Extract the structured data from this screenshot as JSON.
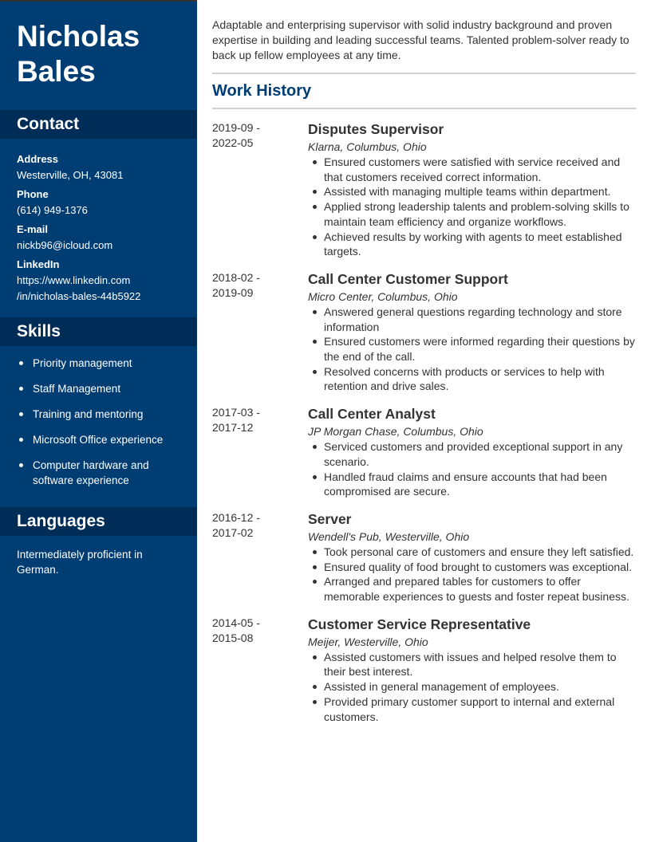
{
  "name": {
    "first": "Nicholas",
    "last": "Bales"
  },
  "colors": {
    "sidebar": "#003d73",
    "band": "#002d58",
    "heading": "#003d73"
  },
  "contact": {
    "heading": "Contact",
    "items": [
      {
        "label": "Address",
        "value": "Westerville, OH, 43081"
      },
      {
        "label": "Phone",
        "value": "(614) 949-1376"
      },
      {
        "label": "E-mail",
        "value": "nickb96@icloud.com"
      },
      {
        "label": "LinkedIn",
        "value": "https://www.linkedin.com /in/nicholas-bales-44b5922"
      }
    ]
  },
  "skills": {
    "heading": "Skills",
    "items": [
      "Priority management",
      "Staff Management",
      "Training and mentoring",
      "Microsoft Office experience",
      "Computer hardware and software experience"
    ]
  },
  "languages": {
    "heading": "Languages",
    "text": "Intermediately proficient in German."
  },
  "summary": "Adaptable and enterprising supervisor with solid industry background and proven expertise in building and leading successful teams. Talented problem-solver ready to back up fellow employees at any time.",
  "work_history": {
    "heading": "Work History",
    "jobs": [
      {
        "dates": "2019-09 - 2022-05",
        "title": "Disputes Supervisor",
        "company": "Klarna, Columbus, Ohio",
        "bullets": [
          "Ensured customers were satisfied with service received and that customers received correct information.",
          "Assisted with managing multiple teams within department.",
          "Applied strong leadership talents and problem-solving skills to maintain team efficiency and organize workflows.",
          "Achieved results by working with agents to meet established targets."
        ]
      },
      {
        "dates": "2018-02 - 2019-09",
        "title": "Call Center Customer Support",
        "company": "Micro Center, Columbus, Ohio",
        "bullets": [
          "Answered general questions regarding technology and store information",
          "Ensured customers were informed regarding their questions by the end of the call.",
          "Resolved concerns with products or services to help with retention and drive sales."
        ]
      },
      {
        "dates": "2017-03 - 2017-12",
        "title": "Call Center Analyst",
        "company": "JP Morgan Chase, Columbus, Ohio",
        "bullets": [
          "Serviced customers and provided exceptional support in any scenario.",
          "Handled fraud claims and ensure accounts that had been compromised are secure."
        ]
      },
      {
        "dates": "2016-12 - 2017-02",
        "title": "Server",
        "company": "Wendell's Pub, Westerville, Ohio",
        "bullets": [
          "Took personal care of customers and ensure they left satisfied.",
          "Ensured quality of food brought to customers was exceptional.",
          "Arranged and prepared tables for customers to offer memorable experiences to guests and foster repeat business."
        ]
      },
      {
        "dates": "2014-05 - 2015-08",
        "title": "Customer Service Representative",
        "company": "Meijer, Westerville, Ohio",
        "bullets": [
          "Assisted customers with issues and helped resolve them to their best interest.",
          "Assisted in general management of employees.",
          "Provided primary customer support to internal and external customers."
        ]
      }
    ]
  }
}
